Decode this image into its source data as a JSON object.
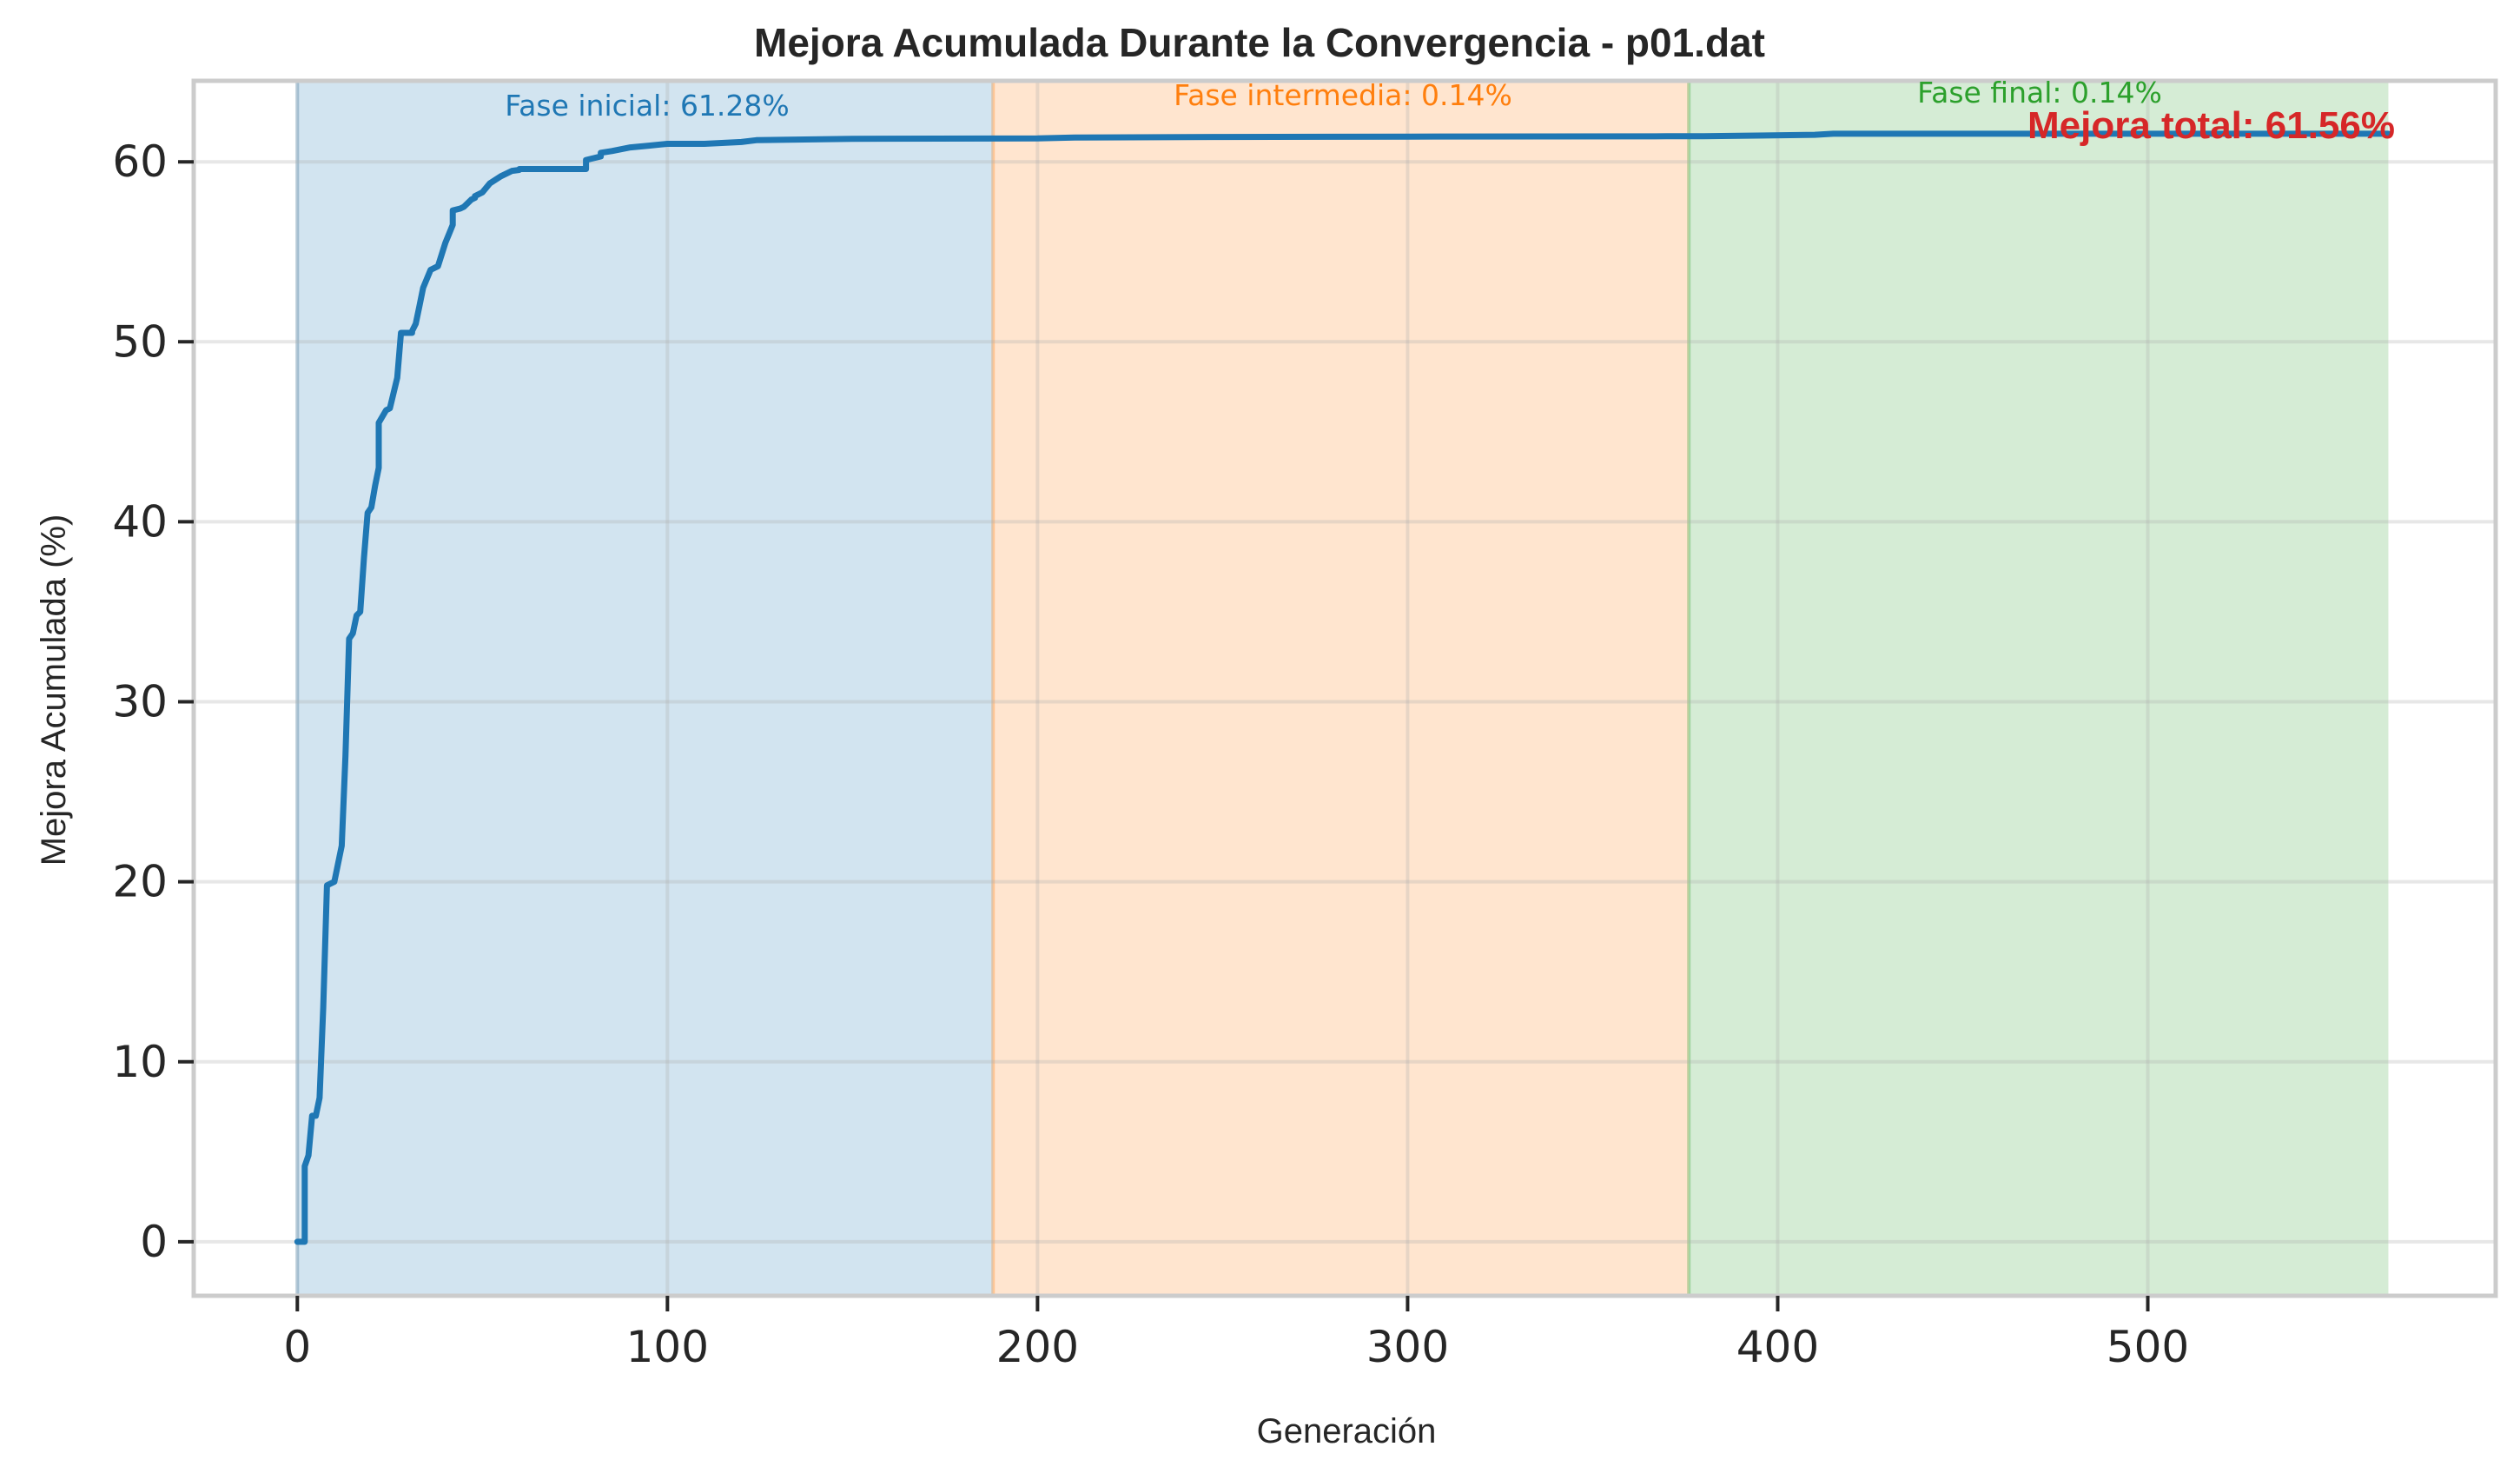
{
  "chart_data": {
    "type": "line",
    "title": "Mejora Acumulada Durante la Convergencia - p01.dat",
    "xlabel": "Generación",
    "ylabel": "Mejora Acumulada (%)",
    "xlim": [
      -28,
      594
    ],
    "ylim": [
      -3,
      64.5
    ],
    "xticks": [
      0,
      100,
      200,
      300,
      400,
      500
    ],
    "yticks": [
      0,
      10,
      20,
      30,
      40,
      50,
      60
    ],
    "grid": true,
    "series": [
      {
        "color": "#1f77b4",
        "x": [
          0,
          2,
          2,
          3,
          4,
          4,
          5,
          6,
          7,
          8,
          10,
          12,
          13,
          14,
          15,
          15,
          16,
          17,
          18,
          19,
          20,
          21,
          22,
          22,
          24,
          25,
          27,
          28,
          30,
          31,
          31,
          32,
          33,
          34,
          36,
          38,
          40,
          41,
          42,
          42,
          44,
          45,
          47,
          48,
          48,
          50,
          52,
          55,
          58,
          60,
          60,
          62,
          65,
          70,
          75,
          78,
          78,
          82,
          82,
          85,
          90,
          95,
          100,
          110,
          120,
          124,
          150,
          200,
          210,
          250,
          300,
          370,
          380,
          410,
          415,
          500,
          565
        ],
        "y": [
          0,
          0,
          4.2,
          4.8,
          7.0,
          7.0,
          7.0,
          8.0,
          13.0,
          19.8,
          20.0,
          22.0,
          27.0,
          33.5,
          33.8,
          33.8,
          34.8,
          35.0,
          38.0,
          40.5,
          40.8,
          42.0,
          43.0,
          45.5,
          46.2,
          46.3,
          48.0,
          50.5,
          50.5,
          50.5,
          50.6,
          51.0,
          52.0,
          53.0,
          54.0,
          54.2,
          55.5,
          56.0,
          56.5,
          57.3,
          57.4,
          57.5,
          57.9,
          58.0,
          58.1,
          58.3,
          58.8,
          59.2,
          59.5,
          59.55,
          59.6,
          59.6,
          59.6,
          59.6,
          59.6,
          59.6,
          60.1,
          60.3,
          60.5,
          60.6,
          60.8,
          60.9,
          61.0,
          61.0,
          61.1,
          61.2,
          61.28,
          61.3,
          61.35,
          61.38,
          61.4,
          61.42,
          61.42,
          61.5,
          61.56,
          61.56,
          61.56
        ]
      }
    ],
    "phases": [
      {
        "label": "Fase inicial: 61.28%",
        "x_start": 0,
        "x_end": 188,
        "fill": "#1f77b4",
        "text_color": "#1f77b4"
      },
      {
        "label": "Fase intermedia: 0.14%",
        "x_start": 188,
        "x_end": 376,
        "fill": "#ff7f0e",
        "text_color": "#ff7f0e"
      },
      {
        "label": "Fase final: 0.14%",
        "x_start": 376,
        "x_end": 565,
        "fill": "#2ca02c",
        "text_color": "#2ca02c"
      }
    ],
    "annotation": {
      "text": "Mejora total: 61.56%",
      "color": "#d62728"
    }
  }
}
